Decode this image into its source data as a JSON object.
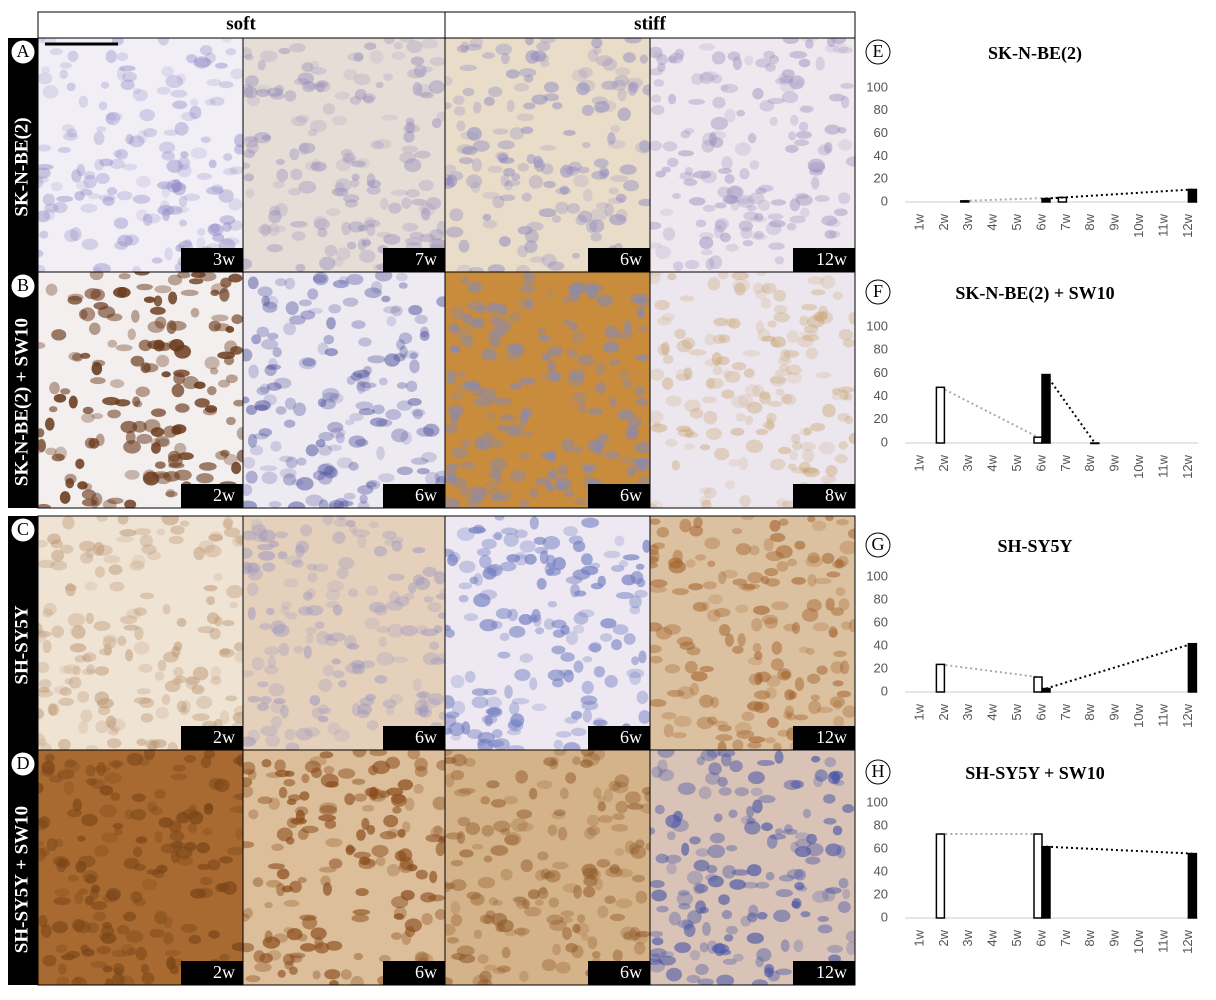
{
  "header": {
    "soft": "soft",
    "stiff": "stiff"
  },
  "rows": [
    {
      "letter": "A",
      "label": "SK-N-BE(2)",
      "times": [
        "3w",
        "7w",
        "6w",
        "12w"
      ]
    },
    {
      "letter": "B",
      "label": "SK-N-BE(2) + SW10",
      "times": [
        "2w",
        "6w",
        "6w",
        "8w"
      ]
    },
    {
      "letter": "C",
      "label": "SH-SY5Y",
      "times": [
        "2w",
        "6w",
        "6w",
        "12w"
      ]
    },
    {
      "letter": "D",
      "label": "SH-SY5Y + SW10",
      "times": [
        "2w",
        "6w",
        "6w",
        "12w"
      ]
    }
  ],
  "chart_data": [
    {
      "type": "bar",
      "letter": "E",
      "title": "SK-N-BE(2)",
      "categories": [
        "1w",
        "2w",
        "3w",
        "4w",
        "5w",
        "6w",
        "7w",
        "8w",
        "9w",
        "10w",
        "11w",
        "12w"
      ],
      "ylim": [
        0,
        100
      ],
      "yticks": [
        0,
        20,
        40,
        60,
        80,
        100
      ],
      "series": [
        {
          "color": "#ffffff",
          "line_color": "#aaaaaa",
          "values": [
            null,
            null,
            1,
            null,
            null,
            null,
            4,
            null,
            null,
            null,
            null,
            null
          ]
        },
        {
          "color": "#000000",
          "line_color": "#000000",
          "values": [
            null,
            null,
            null,
            null,
            null,
            3,
            null,
            null,
            null,
            null,
            null,
            11
          ]
        }
      ]
    },
    {
      "type": "bar",
      "letter": "F",
      "title": "SK-N-BE(2) + SW10",
      "categories": [
        "1w",
        "2w",
        "3w",
        "4w",
        "5w",
        "6w",
        "7w",
        "8w",
        "9w",
        "10w",
        "11w",
        "12w"
      ],
      "ylim": [
        0,
        100
      ],
      "yticks": [
        0,
        20,
        40,
        60,
        80,
        100
      ],
      "series": [
        {
          "color": "#ffffff",
          "line_color": "#aaaaaa",
          "values": [
            null,
            48,
            null,
            null,
            null,
            5,
            null,
            null,
            null,
            null,
            null,
            null
          ]
        },
        {
          "color": "#000000",
          "line_color": "#000000",
          "values": [
            null,
            null,
            null,
            null,
            null,
            59,
            null,
            0,
            null,
            null,
            null,
            null
          ]
        }
      ]
    },
    {
      "type": "bar",
      "letter": "G",
      "title": "SH-SY5Y",
      "categories": [
        "1w",
        "2w",
        "3w",
        "4w",
        "5w",
        "6w",
        "7w",
        "8w",
        "9w",
        "10w",
        "11w",
        "12w"
      ],
      "ylim": [
        0,
        100
      ],
      "yticks": [
        0,
        20,
        40,
        60,
        80,
        100
      ],
      "series": [
        {
          "color": "#ffffff",
          "line_color": "#aaaaaa",
          "values": [
            null,
            24,
            null,
            null,
            null,
            13,
            null,
            null,
            null,
            null,
            null,
            null
          ]
        },
        {
          "color": "#000000",
          "line_color": "#000000",
          "values": [
            null,
            null,
            null,
            null,
            null,
            3,
            null,
            null,
            null,
            null,
            null,
            42
          ]
        }
      ]
    },
    {
      "type": "bar",
      "letter": "H",
      "title": "SH-SY5Y + SW10",
      "categories": [
        "1w",
        "2w",
        "3w",
        "4w",
        "5w",
        "6w",
        "7w",
        "8w",
        "9w",
        "10w",
        "11w",
        "12w"
      ],
      "ylim": [
        0,
        100
      ],
      "yticks": [
        0,
        20,
        40,
        60,
        80,
        100
      ],
      "series": [
        {
          "color": "#ffffff",
          "line_color": "#aaaaaa",
          "values": [
            null,
            73,
            null,
            null,
            null,
            73,
            null,
            null,
            null,
            null,
            null,
            null
          ]
        },
        {
          "color": "#000000",
          "line_color": "#000000",
          "values": [
            null,
            null,
            null,
            null,
            null,
            62,
            null,
            null,
            null,
            null,
            null,
            56
          ]
        }
      ]
    }
  ]
}
